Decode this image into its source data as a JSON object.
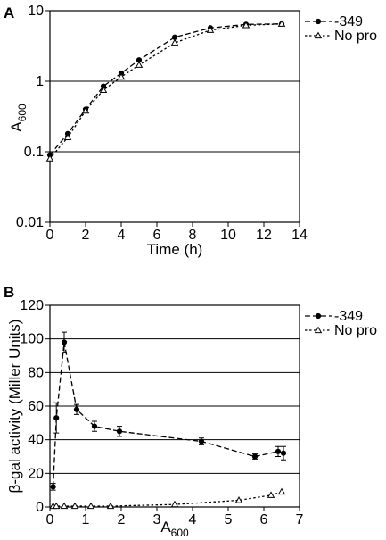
{
  "chart_data": [
    {
      "panel_label": "A",
      "type": "line",
      "xlabel": "Time (h)",
      "ylabel_main": "A",
      "ylabel_sub": "600",
      "x_ticks": [
        "0",
        "2",
        "4",
        "6",
        "8",
        "10",
        "12",
        "14"
      ],
      "y_ticks": [
        "0.01",
        "0.1",
        "1",
        "10"
      ],
      "xlim": [
        0,
        14
      ],
      "ylim": [
        0.01,
        10
      ],
      "y_scale": "log",
      "grid": "horizontal",
      "legend_position": "right",
      "series": [
        {
          "name": "-349",
          "marker": "circle",
          "line": "dashed",
          "x": [
            0,
            1,
            2,
            3,
            4,
            5,
            7,
            9,
            11,
            13
          ],
          "y": [
            0.09,
            0.18,
            0.4,
            0.85,
            1.3,
            2.0,
            4.2,
            5.7,
            6.4,
            6.5
          ]
        },
        {
          "name": "No pro",
          "marker": "triangle",
          "line": "dotted",
          "x": [
            0,
            1,
            2,
            3,
            4,
            5,
            7,
            9,
            11,
            13
          ],
          "y": [
            0.08,
            0.16,
            0.38,
            0.75,
            1.15,
            1.7,
            3.5,
            5.3,
            6.2,
            6.5
          ]
        }
      ]
    },
    {
      "panel_label": "B",
      "type": "line",
      "xlabel_main": "A",
      "xlabel_sub": "600",
      "ylabel_main": "β-gal activity (Miller Units)",
      "x_ticks": [
        "0",
        "1",
        "2",
        "3",
        "4",
        "5",
        "6",
        "7"
      ],
      "y_ticks": [
        "0",
        "20",
        "40",
        "60",
        "80",
        "100",
        "120"
      ],
      "xlim": [
        0,
        7
      ],
      "ylim": [
        0,
        120
      ],
      "grid": "horizontal",
      "legend_position": "right",
      "series": [
        {
          "name": "-349",
          "marker": "circle",
          "line": "dashed",
          "x": [
            0.09,
            0.18,
            0.4,
            0.75,
            1.25,
            1.95,
            4.25,
            5.75,
            6.4,
            6.55
          ],
          "y": [
            12,
            53,
            98,
            58,
            48,
            45,
            39,
            30,
            33,
            32
          ],
          "err": [
            2,
            9,
            6,
            3,
            3,
            3,
            2,
            1.5,
            3,
            4
          ]
        },
        {
          "name": "No pro",
          "marker": "triangle",
          "line": "dotted",
          "x": [
            0.09,
            0.18,
            0.4,
            0.7,
            1.15,
            1.7,
            3.5,
            5.3,
            6.2,
            6.5
          ],
          "y": [
            0.5,
            0.5,
            0.5,
            0.5,
            0.5,
            0.5,
            1.5,
            4,
            7,
            9
          ],
          "err": [
            0,
            0,
            0,
            0,
            0,
            0,
            0,
            0,
            0,
            0
          ]
        }
      ]
    }
  ]
}
